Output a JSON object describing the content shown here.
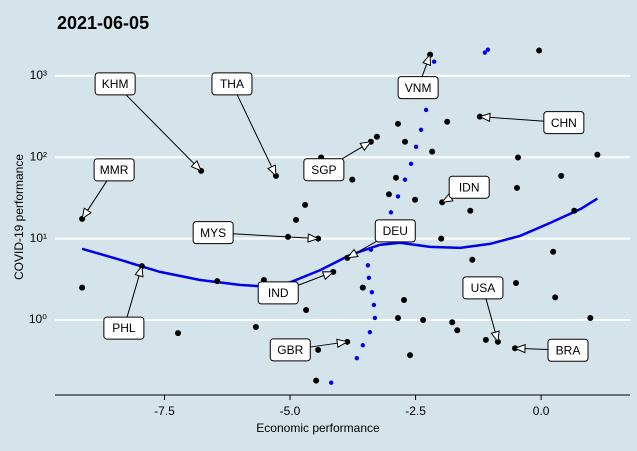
{
  "chart_data": {
    "type": "scatter",
    "title": "2021-06-05",
    "x_label": "Economic performance",
    "y_label": "COVID-19 performance",
    "xlim": [
      -9.68,
      1.77
    ],
    "ylim": [
      0.12,
      2750
    ],
    "log_y": true,
    "grid": true,
    "xticks": [
      -7.5,
      {
        "value": -5,
        "label": "-5.0"
      },
      -2.5,
      {
        "value": 0,
        "label": "0.0"
      }
    ],
    "yticks": [
      {
        "value": 1,
        "label": "10⁰"
      },
      {
        "value": 10,
        "label": "10¹"
      },
      {
        "value": 100,
        "label": "10²"
      },
      {
        "value": 1000,
        "label": "10³"
      }
    ],
    "points": {
      "color": "#000000",
      "x": [
        -0.04,
        -2.21,
        -1.22,
        1.12,
        -0.46,
        0.4,
        0.66,
        -0.48,
        -6.77,
        -5.28,
        -9.14,
        -9.14,
        -7.23,
        -6.45,
        -7.95,
        -5.68,
        -5.56,
        -5.52,
        -4.88,
        -4.7,
        -4.38,
        -4.0,
        -3.76,
        -3.39,
        -3.27,
        -2.85,
        -2.71,
        -2.17,
        -1.87,
        -1.73,
        -1.97,
        -1.41,
        -1.37,
        -1.99,
        -4.44,
        -4.14,
        -3.86,
        -2.35,
        -3.86,
        -0.86,
        -0.52,
        -1.1,
        -1.67,
        -1.77,
        -4.48,
        -4.44,
        -4.74,
        0.98,
        0.28,
        0.24,
        -0.5,
        -2.73,
        -2.85,
        -2.61,
        -4.68,
        -5.04,
        -3.55,
        -3.03,
        -2.89,
        -2.51
      ],
      "y": [
        2040,
        1820,
        315,
        107,
        99,
        59,
        22,
        42,
        68,
        59,
        17.5,
        2.5,
        0.69,
        3.0,
        4.6,
        0.82,
        2.3,
        3.1,
        17,
        26,
        99,
        81,
        53,
        155,
        178,
        257,
        155,
        117,
        272,
        46,
        28,
        22,
        5.5,
        10,
        10,
        3.9,
        5.8,
        1.0,
        0.54,
        0.54,
        0.45,
        0.57,
        0.75,
        0.94,
        0.18,
        0.43,
        0.54,
        1.06,
        1.9,
        6.9,
        2.85,
        1.76,
        1.06,
        0.37,
        1.33,
        10.5,
        2.5,
        35,
        56,
        30
      ]
    },
    "dots": {
      "color": "#0000ee",
      "x": [
        -4.18,
        -3.67,
        -3.55,
        -3.41,
        -3.31,
        -3.33,
        -3.37,
        -3.43,
        -3.45,
        -3.39,
        -3.27,
        -3.13,
        -2.99,
        -2.85,
        -2.71,
        -2.59,
        -2.49,
        -2.39,
        -2.29,
        -2.19,
        -2.13,
        -1.12,
        -1.06
      ],
      "y": [
        0.17,
        0.34,
        0.49,
        0.71,
        1.06,
        1.53,
        2.2,
        3.3,
        4.7,
        7.3,
        10.2,
        14.3,
        21,
        33,
        53,
        83,
        134,
        217,
        380,
        780,
        1490,
        1930,
        2090
      ]
    },
    "curve": {
      "color": "#0000ee",
      "x": [
        -9.14,
        -8.39,
        -7.59,
        -6.79,
        -6.0,
        -5.6,
        -5.0,
        -4.4,
        -3.8,
        -3.21,
        -2.81,
        -2.21,
        -1.61,
        -1.02,
        -0.42,
        0.18,
        0.78,
        1.12
      ],
      "y": [
        7.5,
        5.5,
        3.9,
        3.1,
        2.7,
        2.6,
        2.9,
        4.1,
        6.3,
        8.4,
        8.9,
        7.9,
        7.7,
        8.6,
        10.8,
        15.6,
        23,
        31
      ]
    },
    "annotations": [
      {
        "text": "KHM",
        "x": -6.77,
        "y": 68
      },
      {
        "text": "THA",
        "x": -5.28,
        "y": 59
      },
      {
        "text": "MMR",
        "x": -9.14,
        "y": 17.5
      },
      {
        "text": "SGP",
        "x": -3.39,
        "y": 155
      },
      {
        "text": "VNM",
        "x": -2.21,
        "y": 1820
      },
      {
        "text": "CHN",
        "x": -1.22,
        "y": 315
      },
      {
        "text": "IDN",
        "x": -1.97,
        "y": 28
      },
      {
        "text": "MYS",
        "x": -4.44,
        "y": 10
      },
      {
        "text": "DEU",
        "x": -3.86,
        "y": 5.8
      },
      {
        "text": "IND",
        "x": -4.14,
        "y": 3.9
      },
      {
        "text": "PHL",
        "x": -7.95,
        "y": 4.6
      },
      {
        "text": "GBR",
        "x": -3.86,
        "y": 0.54
      },
      {
        "text": "USA",
        "x": -0.86,
        "y": 0.54
      },
      {
        "text": "BRA",
        "x": -0.52,
        "y": 0.45
      }
    ]
  }
}
